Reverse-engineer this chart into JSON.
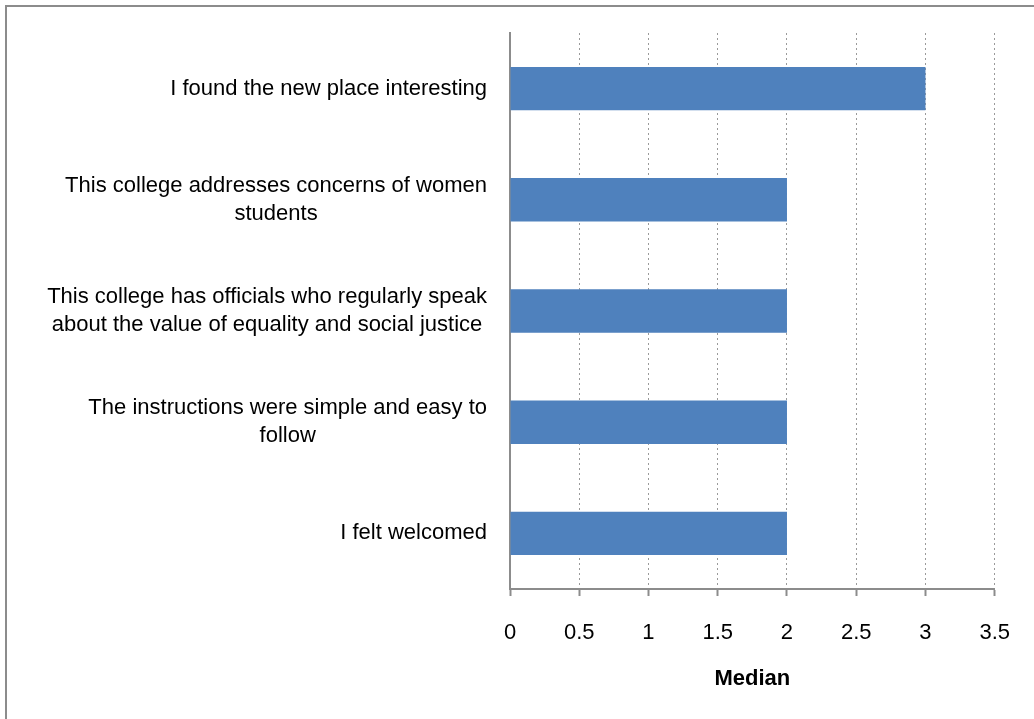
{
  "chart_data": {
    "type": "bar",
    "orientation": "horizontal",
    "xlabel": "Median",
    "categories": [
      "I found the new place interesting",
      "This college addresses concerns of women students",
      "This college has officials who regularly speak about the value of equality and social justice",
      "The instructions were simple and easy to follow",
      "I felt welcomed"
    ],
    "values": [
      3,
      2,
      2,
      2,
      2
    ],
    "color": "#4f81bd",
    "xlim": [
      0,
      3.5
    ],
    "xticks": [
      0,
      0.5,
      1,
      1.5,
      2,
      2.5,
      3,
      3.5
    ],
    "grid": "x",
    "legend": false
  }
}
